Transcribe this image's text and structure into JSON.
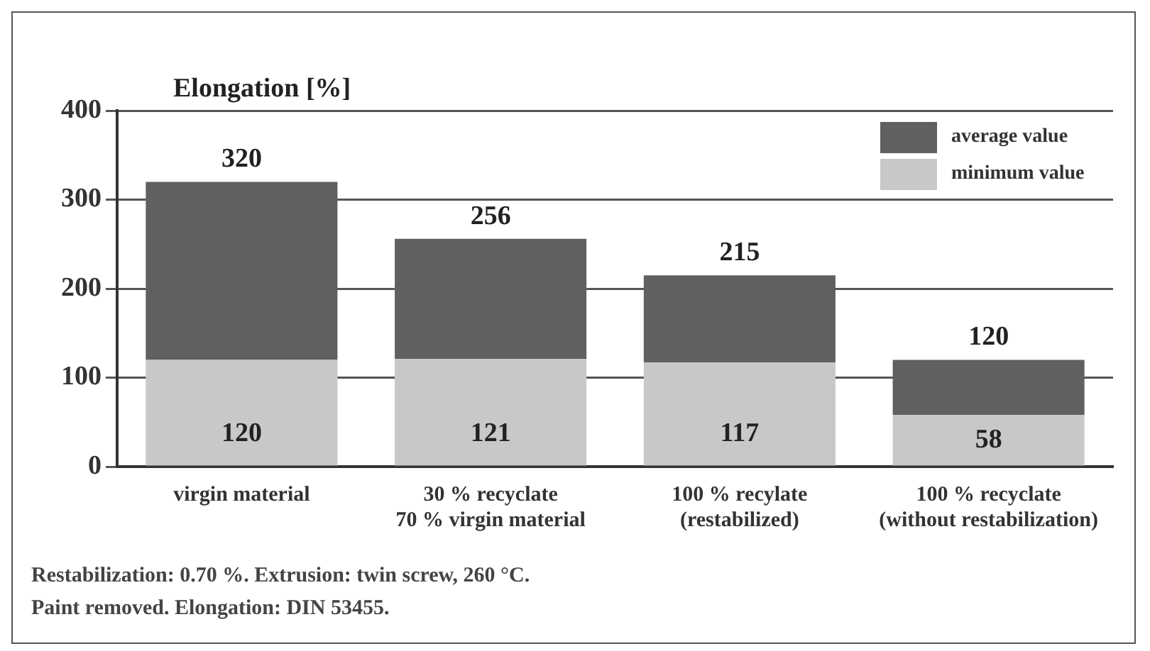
{
  "chart_data": {
    "type": "bar",
    "stacked": true,
    "ylabel": "Elongation [%]",
    "categories": [
      "virgin material",
      "30 % recyclate\n70 % virgin material",
      "100 % recylate\n(restabilized)",
      "100 % recyclate\n(without restabilization)"
    ],
    "series": [
      {
        "name": "minimum value",
        "color": "#c8c8c8",
        "values": [
          120,
          121,
          117,
          58
        ],
        "value_labels": [
          "120",
          "121",
          "117",
          "58"
        ]
      },
      {
        "name": "average value",
        "color": "#606060",
        "values": [
          200,
          135,
          98,
          62
        ]
      }
    ],
    "totals": [
      "320",
      "256",
      "215",
      "120"
    ],
    "ylim": [
      0,
      400
    ],
    "yticks": [
      0,
      100,
      200,
      300,
      400
    ],
    "grid": "y",
    "legend": "top right",
    "annotations": [
      "Restabilization: 0.70 %. Extrusion: twin screw, 260 °C.",
      "Paint removed. Elongation: DIN 53455."
    ]
  }
}
